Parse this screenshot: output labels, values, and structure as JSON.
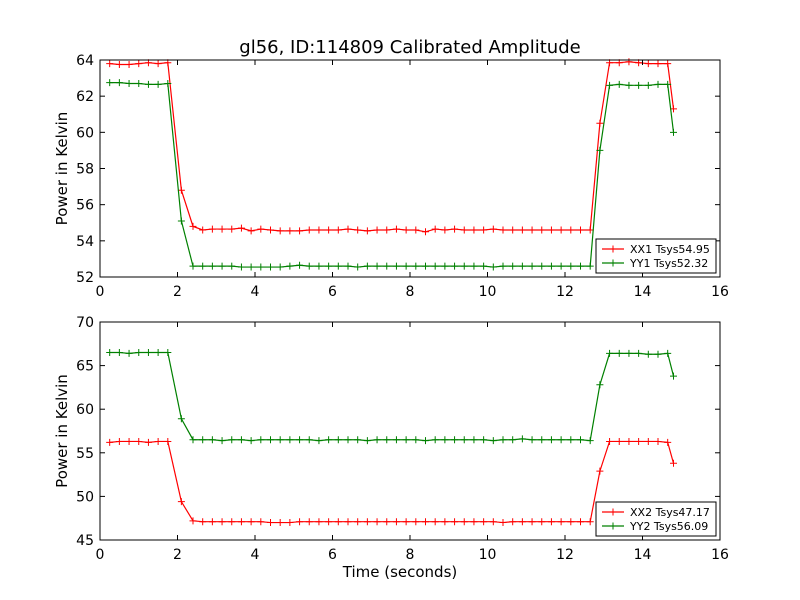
{
  "title": "gl56, ID:114809 Calibrated Amplitude",
  "chart_data": [
    {
      "type": "line",
      "ylabel": "Power in Kelvin",
      "xlabel": "",
      "xlim": [
        0,
        16
      ],
      "ylim": [
        52,
        64
      ],
      "xticks": [
        "0",
        "2",
        "4",
        "6",
        "8",
        "10",
        "12",
        "14",
        "16"
      ],
      "yticks": [
        "52",
        "54",
        "56",
        "58",
        "60",
        "62",
        "64"
      ],
      "grid": false,
      "legend_position": "lower-right",
      "x": [
        0.25,
        0.5,
        0.75,
        1.0,
        1.25,
        1.5,
        1.75,
        2.1,
        2.4,
        2.65,
        2.9,
        3.15,
        3.4,
        3.65,
        3.9,
        4.15,
        4.4,
        4.65,
        4.9,
        5.15,
        5.4,
        5.65,
        5.9,
        6.15,
        6.4,
        6.65,
        6.9,
        7.15,
        7.4,
        7.65,
        7.9,
        8.15,
        8.4,
        8.65,
        8.9,
        9.15,
        9.4,
        9.65,
        9.9,
        10.15,
        10.4,
        10.65,
        10.9,
        11.15,
        11.4,
        11.65,
        11.9,
        12.15,
        12.4,
        12.65,
        12.9,
        13.15,
        13.4,
        13.65,
        13.9,
        14.15,
        14.4,
        14.65,
        14.8
      ],
      "series": [
        {
          "name": "XX1 Tsys54.95",
          "color": "#ff0000",
          "values": [
            63.8,
            63.75,
            63.75,
            63.8,
            63.85,
            63.8,
            63.85,
            56.8,
            54.8,
            54.6,
            54.65,
            54.65,
            54.65,
            54.7,
            54.55,
            54.65,
            54.6,
            54.55,
            54.55,
            54.55,
            54.6,
            54.6,
            54.6,
            54.6,
            54.65,
            54.6,
            54.55,
            54.6,
            54.6,
            54.65,
            54.6,
            54.6,
            54.5,
            54.65,
            54.6,
            54.65,
            54.6,
            54.6,
            54.6,
            54.65,
            54.6,
            54.6,
            54.6,
            54.6,
            54.6,
            54.6,
            54.6,
            54.6,
            54.6,
            54.6,
            60.5,
            63.85,
            63.85,
            63.9,
            63.85,
            63.8,
            63.8,
            63.8,
            61.3
          ]
        },
        {
          "name": "YY1 Tsys52.32",
          "color": "#008000",
          "values": [
            62.75,
            62.75,
            62.7,
            62.7,
            62.65,
            62.65,
            62.7,
            55.1,
            52.6,
            52.6,
            52.6,
            52.6,
            52.6,
            52.55,
            52.55,
            52.55,
            52.55,
            52.55,
            52.6,
            52.65,
            52.6,
            52.6,
            52.6,
            52.6,
            52.6,
            52.55,
            52.6,
            52.6,
            52.6,
            52.6,
            52.6,
            52.6,
            52.6,
            52.6,
            52.6,
            52.6,
            52.6,
            52.6,
            52.6,
            52.55,
            52.6,
            52.6,
            52.6,
            52.6,
            52.6,
            52.6,
            52.6,
            52.6,
            52.6,
            52.6,
            59.0,
            62.6,
            62.65,
            62.6,
            62.6,
            62.6,
            62.65,
            62.65,
            60.0
          ]
        }
      ]
    },
    {
      "type": "line",
      "ylabel": "Power in Kelvin",
      "xlabel": "Time (seconds)",
      "xlim": [
        0,
        16
      ],
      "ylim": [
        45,
        70
      ],
      "xticks": [
        "0",
        "2",
        "4",
        "6",
        "8",
        "10",
        "12",
        "14",
        "16"
      ],
      "yticks": [
        "45",
        "50",
        "55",
        "60",
        "65",
        "70"
      ],
      "grid": false,
      "legend_position": "lower-right",
      "x": [
        0.25,
        0.5,
        0.75,
        1.0,
        1.25,
        1.5,
        1.75,
        2.1,
        2.4,
        2.65,
        2.9,
        3.15,
        3.4,
        3.65,
        3.9,
        4.15,
        4.4,
        4.65,
        4.9,
        5.15,
        5.4,
        5.65,
        5.9,
        6.15,
        6.4,
        6.65,
        6.9,
        7.15,
        7.4,
        7.65,
        7.9,
        8.15,
        8.4,
        8.65,
        8.9,
        9.15,
        9.4,
        9.65,
        9.9,
        10.15,
        10.4,
        10.65,
        10.9,
        11.15,
        11.4,
        11.65,
        11.9,
        12.15,
        12.4,
        12.65,
        12.9,
        13.15,
        13.4,
        13.65,
        13.9,
        14.15,
        14.4,
        14.65,
        14.8
      ],
      "series": [
        {
          "name": "XX2 Tsys47.17",
          "color": "#ff0000",
          "values": [
            56.2,
            56.3,
            56.3,
            56.3,
            56.2,
            56.3,
            56.3,
            49.4,
            47.2,
            47.1,
            47.1,
            47.1,
            47.1,
            47.1,
            47.1,
            47.1,
            47.0,
            47.0,
            47.0,
            47.1,
            47.1,
            47.1,
            47.1,
            47.1,
            47.1,
            47.1,
            47.1,
            47.1,
            47.1,
            47.1,
            47.1,
            47.1,
            47.1,
            47.1,
            47.1,
            47.1,
            47.1,
            47.1,
            47.1,
            47.1,
            47.0,
            47.1,
            47.1,
            47.1,
            47.1,
            47.1,
            47.1,
            47.1,
            47.1,
            47.1,
            52.9,
            56.3,
            56.3,
            56.3,
            56.3,
            56.3,
            56.3,
            56.2,
            53.8
          ]
        },
        {
          "name": "YY2 Tsys56.09",
          "color": "#008000",
          "values": [
            66.5,
            66.5,
            66.4,
            66.5,
            66.5,
            66.5,
            66.5,
            58.9,
            56.5,
            56.5,
            56.5,
            56.4,
            56.5,
            56.5,
            56.4,
            56.5,
            56.5,
            56.5,
            56.5,
            56.5,
            56.5,
            56.4,
            56.5,
            56.5,
            56.5,
            56.5,
            56.4,
            56.5,
            56.5,
            56.5,
            56.5,
            56.5,
            56.4,
            56.5,
            56.5,
            56.5,
            56.5,
            56.5,
            56.5,
            56.4,
            56.5,
            56.5,
            56.6,
            56.5,
            56.5,
            56.5,
            56.5,
            56.5,
            56.5,
            56.4,
            62.8,
            66.4,
            66.4,
            66.4,
            66.4,
            66.3,
            66.3,
            66.4,
            63.8
          ]
        }
      ]
    }
  ]
}
